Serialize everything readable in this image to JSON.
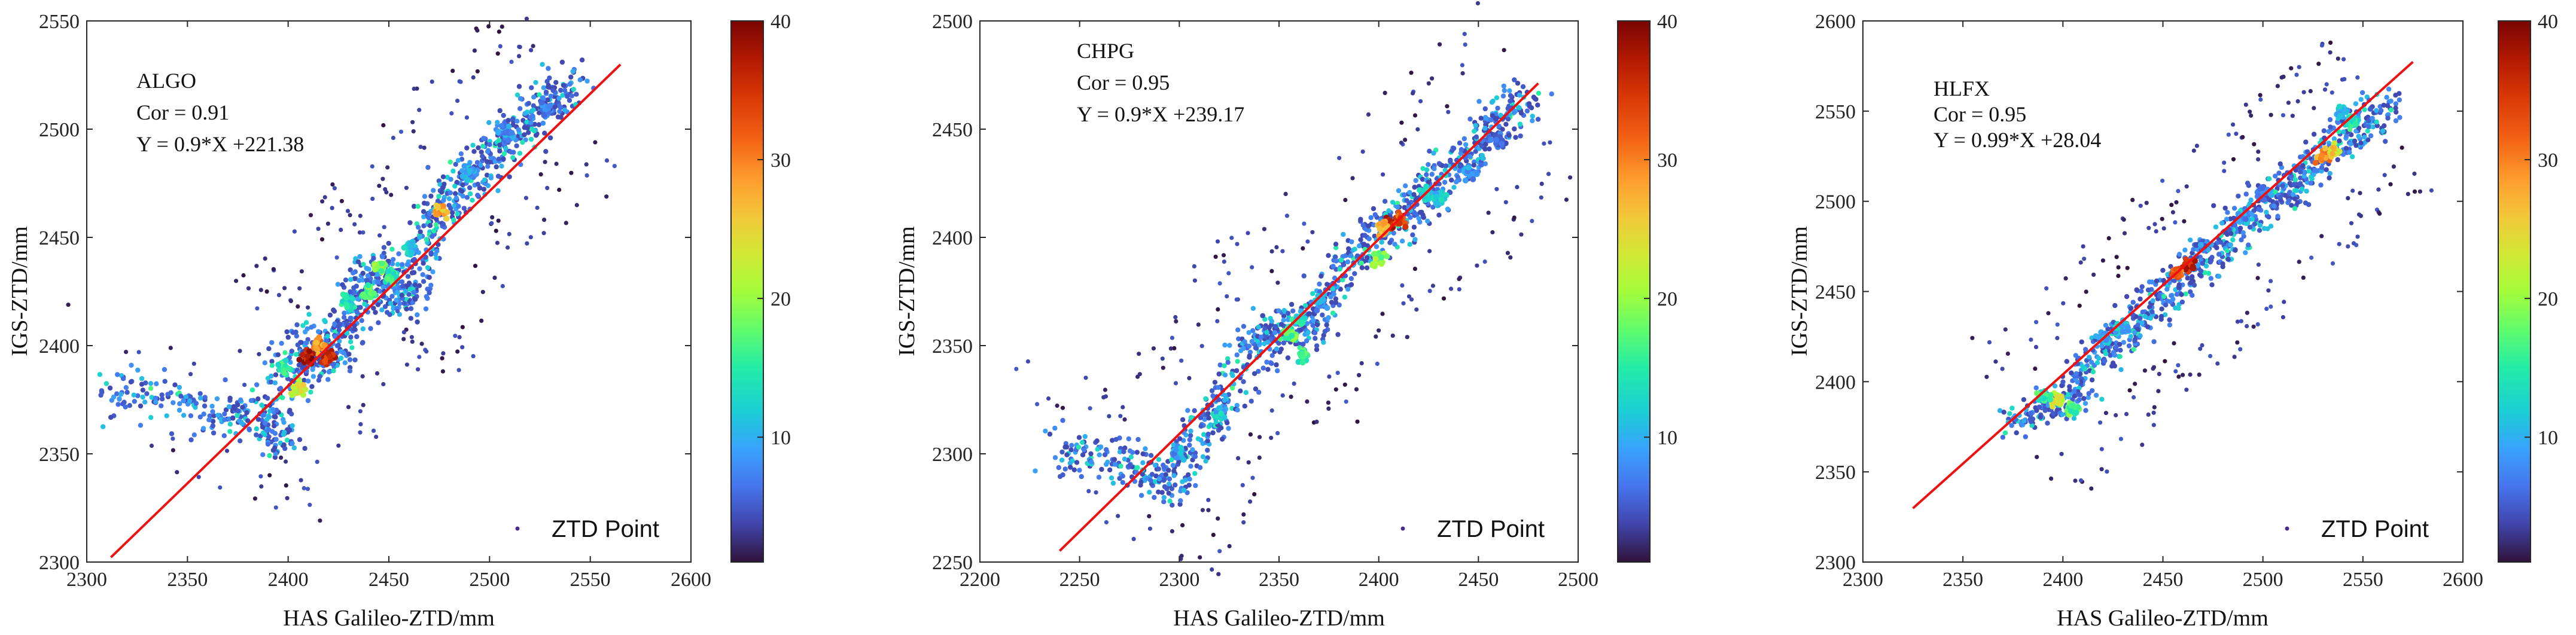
{
  "chart_data": [
    {
      "type": "scatter",
      "station": "ALGO",
      "cor_label": "Cor = 0.91",
      "fit_label": "Y = 0.9*X +221.38",
      "fit": {
        "slope": 0.9,
        "intercept": 221.38,
        "xrange": [
          2312,
          2565
        ]
      },
      "xlabel": "HAS Galileo-ZTD/mm",
      "ylabel": "IGS-ZTD/mm",
      "xlim": [
        2300,
        2600
      ],
      "ylim": [
        2300,
        2550
      ],
      "xticks": [
        2300,
        2350,
        2400,
        2450,
        2500,
        2550,
        2600
      ],
      "yticks": [
        2300,
        2350,
        2400,
        2450,
        2500,
        2550
      ],
      "legend": "ZTD Point",
      "colorbar": {
        "min": 1,
        "max": 40,
        "ticks": [
          10,
          20,
          30,
          40
        ]
      },
      "trace": [
        [
          2312,
          2378
        ],
        [
          2330,
          2376
        ],
        [
          2350,
          2372
        ],
        [
          2368,
          2367
        ],
        [
          2382,
          2372
        ],
        [
          2390,
          2362
        ],
        [
          2395,
          2356
        ],
        [
          2398,
          2382
        ],
        [
          2404,
          2393
        ],
        [
          2410,
          2404
        ],
        [
          2416,
          2397
        ],
        [
          2420,
          2394
        ],
        [
          2425,
          2404
        ],
        [
          2430,
          2414
        ],
        [
          2436,
          2422
        ],
        [
          2440,
          2430
        ],
        [
          2445,
          2436
        ],
        [
          2450,
          2428
        ],
        [
          2455,
          2420
        ],
        [
          2460,
          2425
        ],
        [
          2466,
          2440
        ],
        [
          2470,
          2452
        ],
        [
          2475,
          2462
        ],
        [
          2482,
          2470
        ],
        [
          2490,
          2478
        ],
        [
          2498,
          2484
        ],
        [
          2505,
          2492
        ],
        [
          2512,
          2500
        ],
        [
          2520,
          2505
        ],
        [
          2528,
          2510
        ],
        [
          2535,
          2515
        ],
        [
          2540,
          2520
        ]
      ],
      "hotspots": [
        [
          2410,
          2395,
          40
        ],
        [
          2420,
          2395,
          38
        ],
        [
          2415,
          2400,
          32
        ],
        [
          2405,
          2380,
          26
        ],
        [
          2475,
          2462,
          30
        ],
        [
          2445,
          2437,
          22
        ],
        [
          2440,
          2425,
          20
        ],
        [
          2450,
          2432,
          18
        ],
        [
          2398,
          2390,
          18
        ],
        [
          2430,
          2420,
          16
        ],
        [
          2460,
          2445,
          14
        ],
        [
          2490,
          2480,
          12
        ],
        [
          2508,
          2498,
          12
        ],
        [
          2528,
          2510,
          10
        ]
      ],
      "seed": 11
    },
    {
      "type": "scatter",
      "station": "CHPG",
      "cor_label": "Cor = 0.95",
      "fit_label": "Y = 0.9*X +239.17",
      "fit": {
        "slope": 0.9,
        "intercept": 239.17,
        "xrange": [
          2240,
          2480
        ]
      },
      "xlabel": "HAS Galileo-ZTD/mm",
      "ylabel": "IGS-ZTD/mm",
      "xlim": [
        2200,
        2500
      ],
      "ylim": [
        2250,
        2500
      ],
      "xticks": [
        2200,
        2250,
        2300,
        2350,
        2400,
        2450,
        2500
      ],
      "yticks": [
        2250,
        2300,
        2350,
        2400,
        2450,
        2500
      ],
      "legend": "ZTD Point",
      "colorbar": {
        "min": 1,
        "max": 40,
        "ticks": [
          10,
          20,
          30,
          40
        ]
      },
      "trace": [
        [
          2240,
          2302
        ],
        [
          2255,
          2300
        ],
        [
          2270,
          2296
        ],
        [
          2285,
          2292
        ],
        [
          2295,
          2285
        ],
        [
          2302,
          2295
        ],
        [
          2310,
          2310
        ],
        [
          2318,
          2318
        ],
        [
          2325,
          2330
        ],
        [
          2335,
          2345
        ],
        [
          2342,
          2355
        ],
        [
          2350,
          2355
        ],
        [
          2358,
          2360
        ],
        [
          2365,
          2355
        ],
        [
          2372,
          2368
        ],
        [
          2380,
          2382
        ],
        [
          2388,
          2390
        ],
        [
          2396,
          2398
        ],
        [
          2404,
          2406
        ],
        [
          2412,
          2410
        ],
        [
          2420,
          2418
        ],
        [
          2428,
          2425
        ],
        [
          2436,
          2430
        ],
        [
          2444,
          2438
        ],
        [
          2452,
          2446
        ],
        [
          2460,
          2452
        ],
        [
          2468,
          2460
        ],
        [
          2476,
          2466
        ]
      ],
      "hotspots": [
        [
          2406,
          2406,
          40
        ],
        [
          2410,
          2408,
          36
        ],
        [
          2402,
          2404,
          30
        ],
        [
          2400,
          2390,
          22
        ],
        [
          2355,
          2355,
          20
        ],
        [
          2362,
          2345,
          18
        ],
        [
          2360,
          2362,
          16
        ],
        [
          2424,
          2420,
          16
        ],
        [
          2430,
          2418,
          14
        ],
        [
          2320,
          2318,
          14
        ],
        [
          2300,
          2300,
          12
        ],
        [
          2445,
          2430,
          12
        ],
        [
          2460,
          2445,
          10
        ],
        [
          2370,
          2370,
          12
        ]
      ],
      "seed": 23
    },
    {
      "type": "scatter",
      "station": "HLFX",
      "cor_label": "Cor = 0.95",
      "fit_label": "Y = 0.99*X +28.04",
      "fit": {
        "slope": 0.99,
        "intercept": 28.04,
        "xrange": [
          2325,
          2575
        ]
      },
      "xlabel": "HAS Galileo-ZTD/mm",
      "ylabel": "IGS-ZTD/mm",
      "xlim": [
        2300,
        2600
      ],
      "ylim": [
        2300,
        2600
      ],
      "xticks": [
        2300,
        2350,
        2400,
        2450,
        2500,
        2550,
        2600
      ],
      "yticks": [
        2300,
        2350,
        2400,
        2450,
        2500,
        2550,
        2600
      ],
      "legend": "ZTD Point",
      "colorbar": {
        "min": 1,
        "max": 40,
        "ticks": [
          10,
          20,
          30,
          40
        ]
      },
      "trace": [
        [
          2375,
          2378
        ],
        [
          2385,
          2382
        ],
        [
          2395,
          2388
        ],
        [
          2405,
          2392
        ],
        [
          2412,
          2405
        ],
        [
          2420,
          2418
        ],
        [
          2428,
          2426
        ],
        [
          2436,
          2432
        ],
        [
          2444,
          2440
        ],
        [
          2452,
          2450
        ],
        [
          2460,
          2458
        ],
        [
          2468,
          2466
        ],
        [
          2476,
          2472
        ],
        [
          2484,
          2480
        ],
        [
          2492,
          2490
        ],
        [
          2500,
          2498
        ],
        [
          2508,
          2504
        ],
        [
          2516,
          2510
        ],
        [
          2524,
          2518
        ],
        [
          2532,
          2528
        ],
        [
          2540,
          2536
        ],
        [
          2548,
          2542
        ],
        [
          2556,
          2548
        ],
        [
          2564,
          2555
        ]
      ],
      "hotspots": [
        [
          2462,
          2464,
          40
        ],
        [
          2457,
          2460,
          34
        ],
        [
          2530,
          2525,
          32
        ],
        [
          2536,
          2528,
          28
        ],
        [
          2397,
          2390,
          26
        ],
        [
          2405,
          2385,
          20
        ],
        [
          2390,
          2392,
          18
        ],
        [
          2545,
          2545,
          16
        ],
        [
          2540,
          2550,
          14
        ],
        [
          2430,
          2430,
          14
        ],
        [
          2420,
          2425,
          12
        ],
        [
          2490,
          2490,
          12
        ],
        [
          2500,
          2505,
          10
        ],
        [
          2470,
          2475,
          10
        ]
      ],
      "seed": 37
    }
  ]
}
